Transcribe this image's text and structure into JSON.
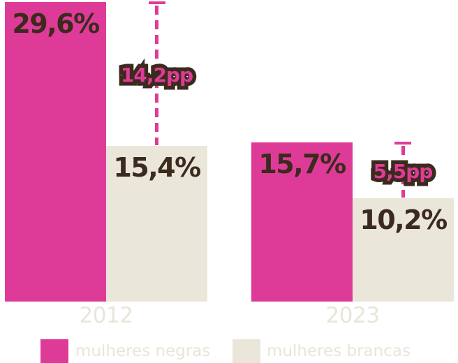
{
  "chart_data": {
    "type": "bar",
    "categories": [
      "2012",
      "2023"
    ],
    "series": [
      {
        "name": "mulheres negras",
        "values": [
          29.6,
          15.7
        ],
        "value_labels": [
          "29,6%",
          "15,7%"
        ],
        "color": "#de3b98"
      },
      {
        "name": "mulheres brancas",
        "values": [
          15.4,
          10.2
        ],
        "value_labels": [
          "15,4%",
          "10,2%"
        ],
        "color": "#eae6d9"
      }
    ],
    "gap_annotations": [
      {
        "category": "2012",
        "label": "14,2pp",
        "value_pp": 14.2
      },
      {
        "category": "2023",
        "label": "5,5pp",
        "value_pp": 5.5
      }
    ],
    "ylim": [
      0,
      29.6
    ],
    "grid": false,
    "legend_position": "bottom",
    "value_label_color": "#3b2a1d",
    "axis_label_color": "#e9e5d8"
  },
  "legend": {
    "items": [
      {
        "label": "mulheres negras",
        "color": "#de3b98"
      },
      {
        "label": "mulheres brancas",
        "color": "#eae6d9"
      }
    ]
  },
  "colors": {
    "pink": "#de3b98",
    "cream": "#eae6d9",
    "dark_brown": "#3b2a1d",
    "light_text": "#e9e5d8",
    "background": "#ffffff"
  }
}
